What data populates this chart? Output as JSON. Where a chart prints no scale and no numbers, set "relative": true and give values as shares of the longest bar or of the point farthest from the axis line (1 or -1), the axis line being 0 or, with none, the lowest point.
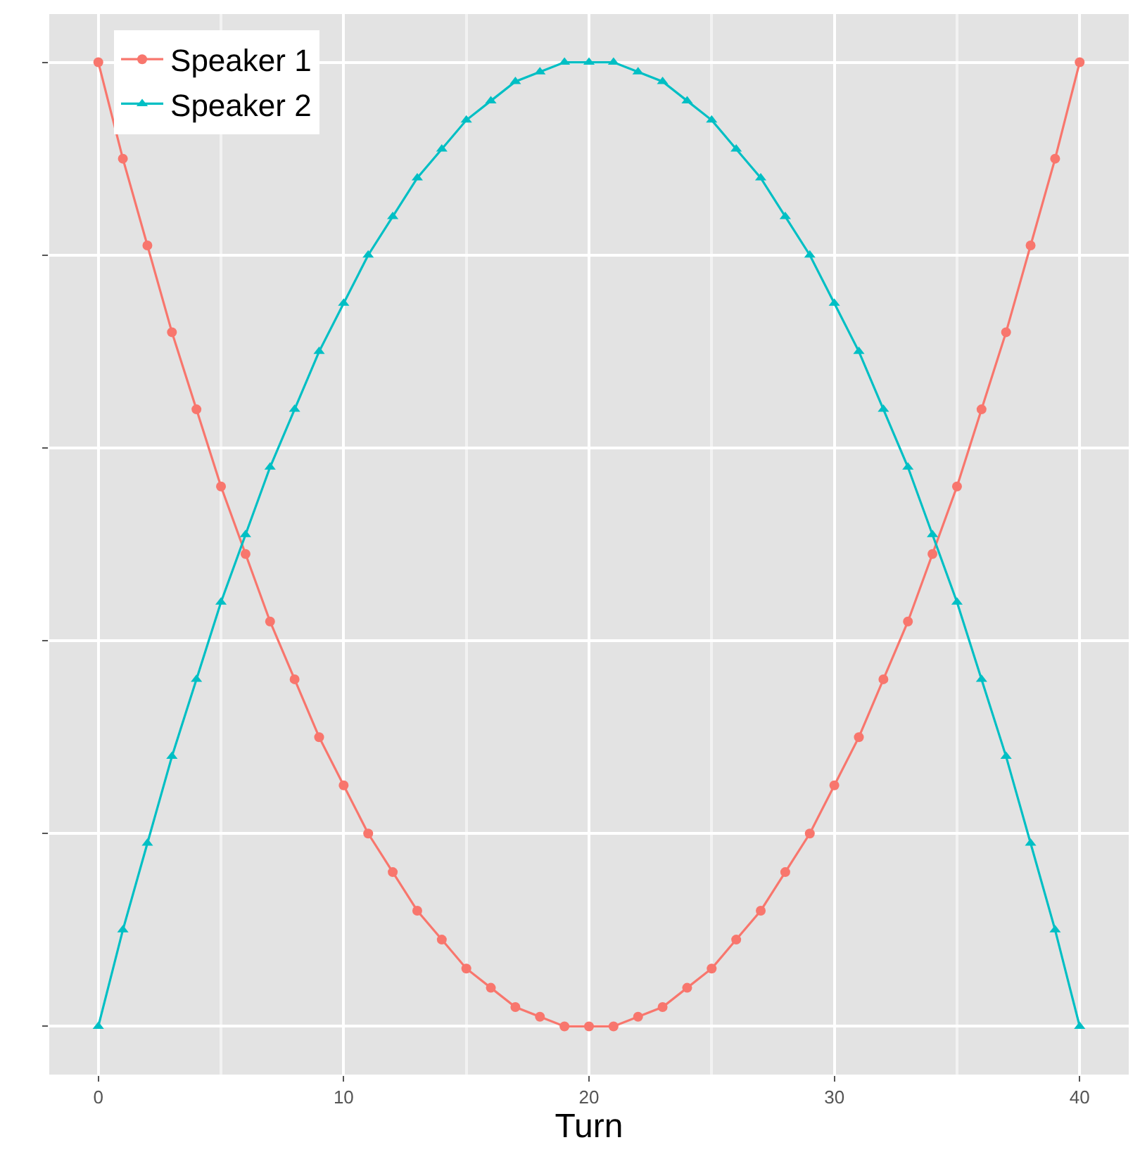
{
  "chart_data": {
    "type": "line",
    "xlabel": "Turn",
    "relative": true,
    "x": [
      0,
      1,
      2,
      3,
      4,
      5,
      6,
      7,
      8,
      9,
      10,
      11,
      12,
      13,
      14,
      15,
      16,
      17,
      18,
      19,
      20,
      21,
      22,
      23,
      24,
      25,
      26,
      27,
      28,
      29,
      30,
      31,
      32,
      33,
      34,
      35,
      36,
      37,
      38,
      39,
      40
    ],
    "xlim": [
      -2,
      42
    ],
    "xticks": [
      0,
      10,
      20,
      30,
      40
    ],
    "series": [
      {
        "name": "Speaker 1",
        "color": "#f8766d",
        "marker": "circle",
        "values": [
          1,
          0.9,
          0.81,
          0.72,
          0.64,
          0.56,
          0.49,
          0.42,
          0.36,
          0.3,
          0.25,
          0.2,
          0.16,
          0.12,
          0.09,
          0.06,
          0.04,
          0.02,
          0.01,
          0.0,
          0,
          0.0,
          0.01,
          0.02,
          0.04,
          0.06,
          0.09,
          0.12,
          0.16,
          0.2,
          0.25,
          0.3,
          0.36,
          0.42,
          0.49,
          0.56,
          0.64,
          0.72,
          0.81,
          0.9,
          1
        ]
      },
      {
        "name": "Speaker 2",
        "color": "#00bfc4",
        "marker": "triangle",
        "values": [
          0,
          0.1,
          0.19,
          0.28,
          0.36,
          0.44,
          0.51,
          0.58,
          0.64,
          0.7,
          0.75,
          0.8,
          0.84,
          0.88,
          0.91,
          0.94,
          0.96,
          0.98,
          0.99,
          1.0,
          1,
          1.0,
          0.99,
          0.98,
          0.96,
          0.94,
          0.91,
          0.88,
          0.84,
          0.8,
          0.75,
          0.7,
          0.64,
          0.58,
          0.51,
          0.44,
          0.36,
          0.28,
          0.19,
          0.1,
          0
        ]
      }
    ],
    "grid": true,
    "legend": "top left",
    "tick_labels": "x",
    "line_style": "solid"
  }
}
